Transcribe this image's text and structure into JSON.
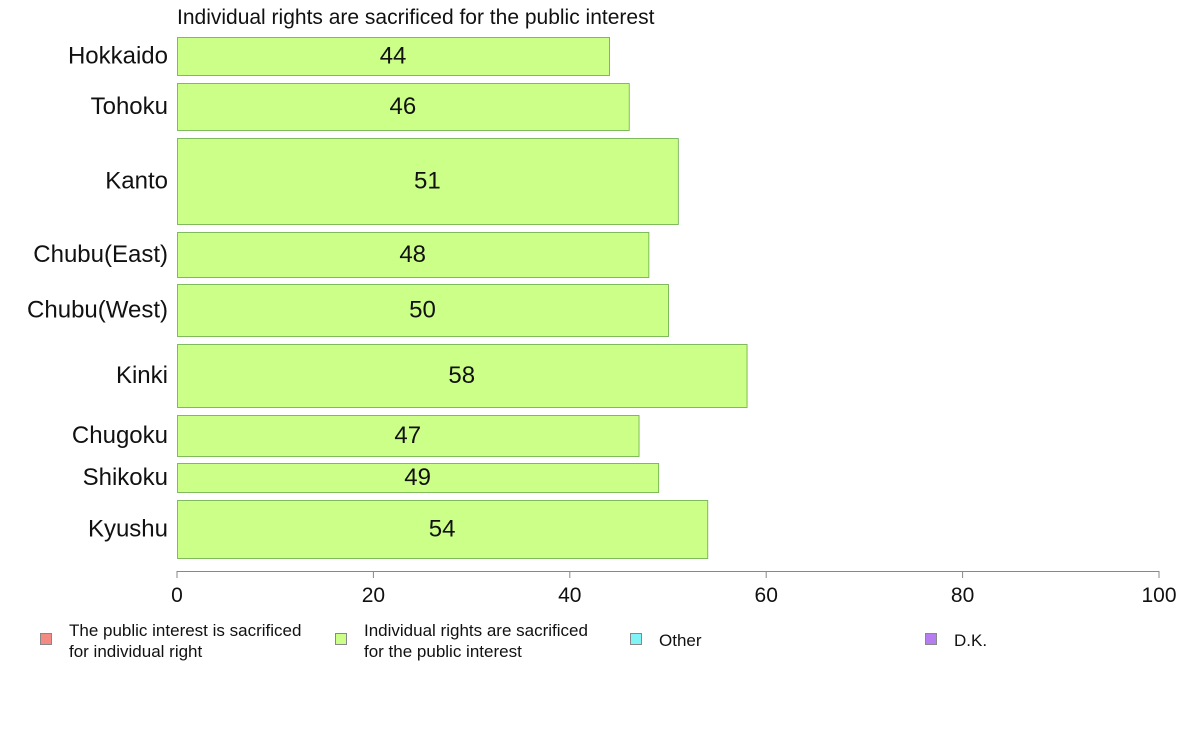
{
  "chart_data": {
    "type": "bar",
    "orientation": "horizontal",
    "title": "Individual rights are sacrificed for the public interest",
    "categories": [
      "Hokkaido",
      "Tohoku",
      "Kanto",
      "Chubu(East)",
      "Chubu(West)",
      "Kinki",
      "Chugoku",
      "Shikoku",
      "Kyushu"
    ],
    "values": [
      44,
      46,
      51,
      48,
      50,
      58,
      47,
      49,
      54
    ],
    "xlim": [
      0,
      100
    ],
    "xticks": [
      "0",
      "20",
      "40",
      "60",
      "80",
      "100"
    ],
    "grid": false,
    "bar_color": "#ccff88",
    "bar_border_color": "#66aa44",
    "legend": [
      {
        "label": "The public interest is sacrificed\nfor individual right",
        "color": "#f28b82"
      },
      {
        "label": "Individual rights are sacrificed\nfor the public interest",
        "color": "#ccff88"
      },
      {
        "label": "Other",
        "color": "#7ff3f5"
      },
      {
        "label": "D.K.",
        "color": "#b57df0"
      }
    ],
    "legend_position": "bottom"
  }
}
